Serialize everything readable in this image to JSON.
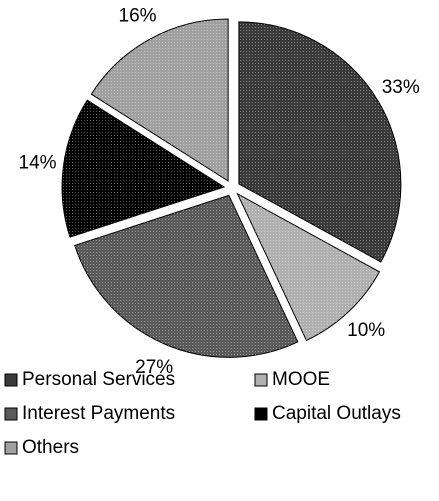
{
  "chart_data": {
    "type": "pie",
    "categories": [
      "Personal Services",
      "MOOE",
      "Interest Payments",
      "Capital Outlays",
      "Others"
    ],
    "values": [
      33,
      10,
      27,
      14,
      16
    ],
    "value_labels": [
      "33%",
      "10%",
      "27%",
      "14%",
      "16%"
    ],
    "colors": [
      "#3a3a3a",
      "#b0b0b0",
      "#5a5a5a",
      "#000000",
      "#a0a0a0"
    ]
  }
}
